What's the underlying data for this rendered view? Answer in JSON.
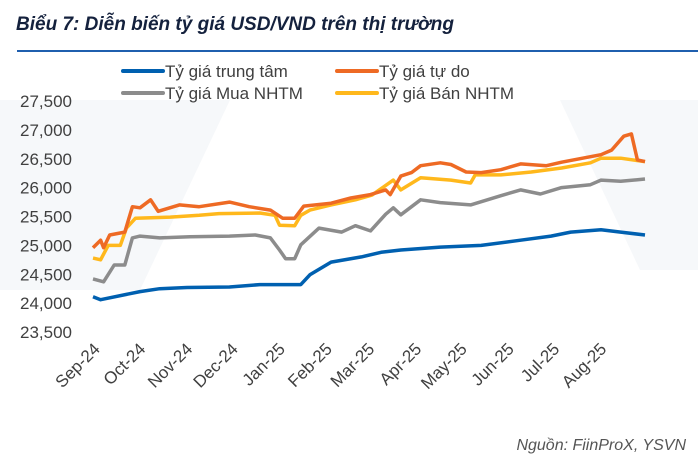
{
  "title": "Biểu 7: Diễn biến tỷ giá USD/VND trên thị trường",
  "source": "Nguồn: FiinProX, YSVN",
  "chart_data": {
    "type": "line",
    "title": "Biểu 7: Diễn biến tỷ giá USD/VND trên thị trường",
    "ylim": [
      23500,
      27500
    ],
    "yticks": [
      23500,
      24000,
      24500,
      25000,
      25500,
      26000,
      26500,
      27000,
      27500
    ],
    "ytick_labels": [
      "23,500",
      "24,000",
      "24,500",
      "25,000",
      "25,500",
      "26,000",
      "26,500",
      "27,000",
      "27,500"
    ],
    "xlim": [
      "2024-09-01",
      "2025-08-31"
    ],
    "xticks": [
      "2024-09-01",
      "2024-10-01",
      "2024-11-01",
      "2024-12-01",
      "2025-01-01",
      "2025-02-01",
      "2025-03-01",
      "2025-04-01",
      "2025-05-01",
      "2025-06-01",
      "2025-07-01",
      "2025-08-01"
    ],
    "xtick_labels": [
      "Sep-24",
      "Oct-24",
      "Nov-24",
      "Dec-24",
      "Jan-25",
      "Feb-25",
      "Mar-25",
      "Apr-25",
      "May-25",
      "Jun-25",
      "Jul-25",
      "Aug-25"
    ],
    "grid": false,
    "legend": "top",
    "series": [
      {
        "name": "Tỷ giá trung tâm",
        "color": "#0060b0",
        "points": [
          [
            "2024-09-01",
            24110
          ],
          [
            "2024-09-06",
            24060
          ],
          [
            "2024-10-02",
            24200
          ],
          [
            "2024-10-15",
            24250
          ],
          [
            "2024-11-02",
            24270
          ],
          [
            "2024-11-30",
            24280
          ],
          [
            "2024-12-20",
            24320
          ],
          [
            "2025-01-06",
            24320
          ],
          [
            "2025-01-16",
            24320
          ],
          [
            "2025-01-22",
            24490
          ],
          [
            "2025-02-05",
            24710
          ],
          [
            "2025-02-25",
            24800
          ],
          [
            "2025-03-10",
            24880
          ],
          [
            "2025-03-23",
            24920
          ],
          [
            "2025-04-18",
            24970
          ],
          [
            "2025-05-15",
            25000
          ],
          [
            "2025-06-10",
            25090
          ],
          [
            "2025-06-30",
            25160
          ],
          [
            "2025-07-13",
            25230
          ],
          [
            "2025-08-02",
            25270
          ],
          [
            "2025-08-15",
            25230
          ],
          [
            "2025-08-31",
            25180
          ]
        ]
      },
      {
        "name": "Tỷ giá tự do",
        "color": "#ee6a24",
        "points": [
          [
            "2024-09-01",
            24960
          ],
          [
            "2024-09-06",
            25090
          ],
          [
            "2024-09-08",
            24960
          ],
          [
            "2024-09-12",
            25180
          ],
          [
            "2024-09-22",
            25230
          ],
          [
            "2024-09-27",
            25670
          ],
          [
            "2024-10-02",
            25650
          ],
          [
            "2024-10-09",
            25790
          ],
          [
            "2024-10-14",
            25590
          ],
          [
            "2024-10-28",
            25700
          ],
          [
            "2024-11-10",
            25670
          ],
          [
            "2024-11-30",
            25750
          ],
          [
            "2024-12-13",
            25670
          ],
          [
            "2024-12-27",
            25610
          ],
          [
            "2025-01-04",
            25470
          ],
          [
            "2025-01-12",
            25470
          ],
          [
            "2025-01-18",
            25680
          ],
          [
            "2025-02-05",
            25730
          ],
          [
            "2025-02-18",
            25820
          ],
          [
            "2025-03-03",
            25880
          ],
          [
            "2025-03-13",
            25960
          ],
          [
            "2025-03-16",
            25880
          ],
          [
            "2025-03-23",
            26200
          ],
          [
            "2025-03-30",
            26260
          ],
          [
            "2025-04-05",
            26380
          ],
          [
            "2025-04-18",
            26430
          ],
          [
            "2025-04-25",
            26400
          ],
          [
            "2025-05-05",
            26270
          ],
          [
            "2025-05-15",
            26260
          ],
          [
            "2025-05-28",
            26310
          ],
          [
            "2025-06-10",
            26410
          ],
          [
            "2025-06-27",
            26380
          ],
          [
            "2025-07-07",
            26440
          ],
          [
            "2025-08-02",
            26570
          ],
          [
            "2025-08-09",
            26650
          ],
          [
            "2025-08-17",
            26890
          ],
          [
            "2025-08-22",
            26930
          ],
          [
            "2025-08-26",
            26480
          ],
          [
            "2025-08-31",
            26450
          ]
        ]
      },
      {
        "name": "Tỷ giá Mua NHTM",
        "color": "#8c8c8c",
        "points": [
          [
            "2024-09-01",
            24420
          ],
          [
            "2024-09-08",
            24370
          ],
          [
            "2024-09-15",
            24660
          ],
          [
            "2024-09-22",
            24660
          ],
          [
            "2024-09-27",
            25130
          ],
          [
            "2024-10-02",
            25160
          ],
          [
            "2024-10-15",
            25130
          ],
          [
            "2024-11-04",
            25150
          ],
          [
            "2024-11-30",
            25160
          ],
          [
            "2024-12-17",
            25180
          ],
          [
            "2024-12-27",
            25130
          ],
          [
            "2025-01-02",
            24920
          ],
          [
            "2025-01-06",
            24770
          ],
          [
            "2025-01-12",
            24770
          ],
          [
            "2025-01-16",
            25010
          ],
          [
            "2025-01-28",
            25300
          ],
          [
            "2025-02-12",
            25230
          ],
          [
            "2025-02-21",
            25340
          ],
          [
            "2025-03-03",
            25250
          ],
          [
            "2025-03-13",
            25540
          ],
          [
            "2025-03-18",
            25650
          ],
          [
            "2025-03-23",
            25530
          ],
          [
            "2025-04-05",
            25790
          ],
          [
            "2025-04-18",
            25740
          ],
          [
            "2025-05-08",
            25700
          ],
          [
            "2025-05-28",
            25860
          ],
          [
            "2025-06-10",
            25960
          ],
          [
            "2025-06-23",
            25890
          ],
          [
            "2025-07-07",
            26000
          ],
          [
            "2025-07-26",
            26050
          ],
          [
            "2025-08-02",
            26130
          ],
          [
            "2025-08-15",
            26110
          ],
          [
            "2025-08-31",
            26150
          ]
        ]
      },
      {
        "name": "Tỷ giá Bán NHTM",
        "color": "#ffb81c",
        "points": [
          [
            "2024-09-01",
            24780
          ],
          [
            "2024-09-06",
            24750
          ],
          [
            "2024-09-11",
            25000
          ],
          [
            "2024-09-19",
            25000
          ],
          [
            "2024-09-23",
            25300
          ],
          [
            "2024-09-29",
            25470
          ],
          [
            "2024-10-22",
            25490
          ],
          [
            "2024-11-10",
            25520
          ],
          [
            "2024-11-23",
            25550
          ],
          [
            "2024-12-20",
            25560
          ],
          [
            "2024-12-30",
            25520
          ],
          [
            "2025-01-02",
            25350
          ],
          [
            "2025-01-12",
            25340
          ],
          [
            "2025-01-16",
            25520
          ],
          [
            "2025-01-22",
            25610
          ],
          [
            "2025-02-05",
            25700
          ],
          [
            "2025-02-21",
            25790
          ],
          [
            "2025-03-04",
            25870
          ],
          [
            "2025-03-18",
            26130
          ],
          [
            "2025-03-23",
            25960
          ],
          [
            "2025-04-05",
            26170
          ],
          [
            "2025-04-25",
            26130
          ],
          [
            "2025-05-08",
            26080
          ],
          [
            "2025-05-11",
            26220
          ],
          [
            "2025-05-28",
            26220
          ],
          [
            "2025-06-17",
            26270
          ],
          [
            "2025-07-07",
            26340
          ],
          [
            "2025-07-26",
            26430
          ],
          [
            "2025-08-02",
            26510
          ],
          [
            "2025-08-15",
            26510
          ],
          [
            "2025-08-31",
            26450
          ]
        ]
      }
    ]
  }
}
